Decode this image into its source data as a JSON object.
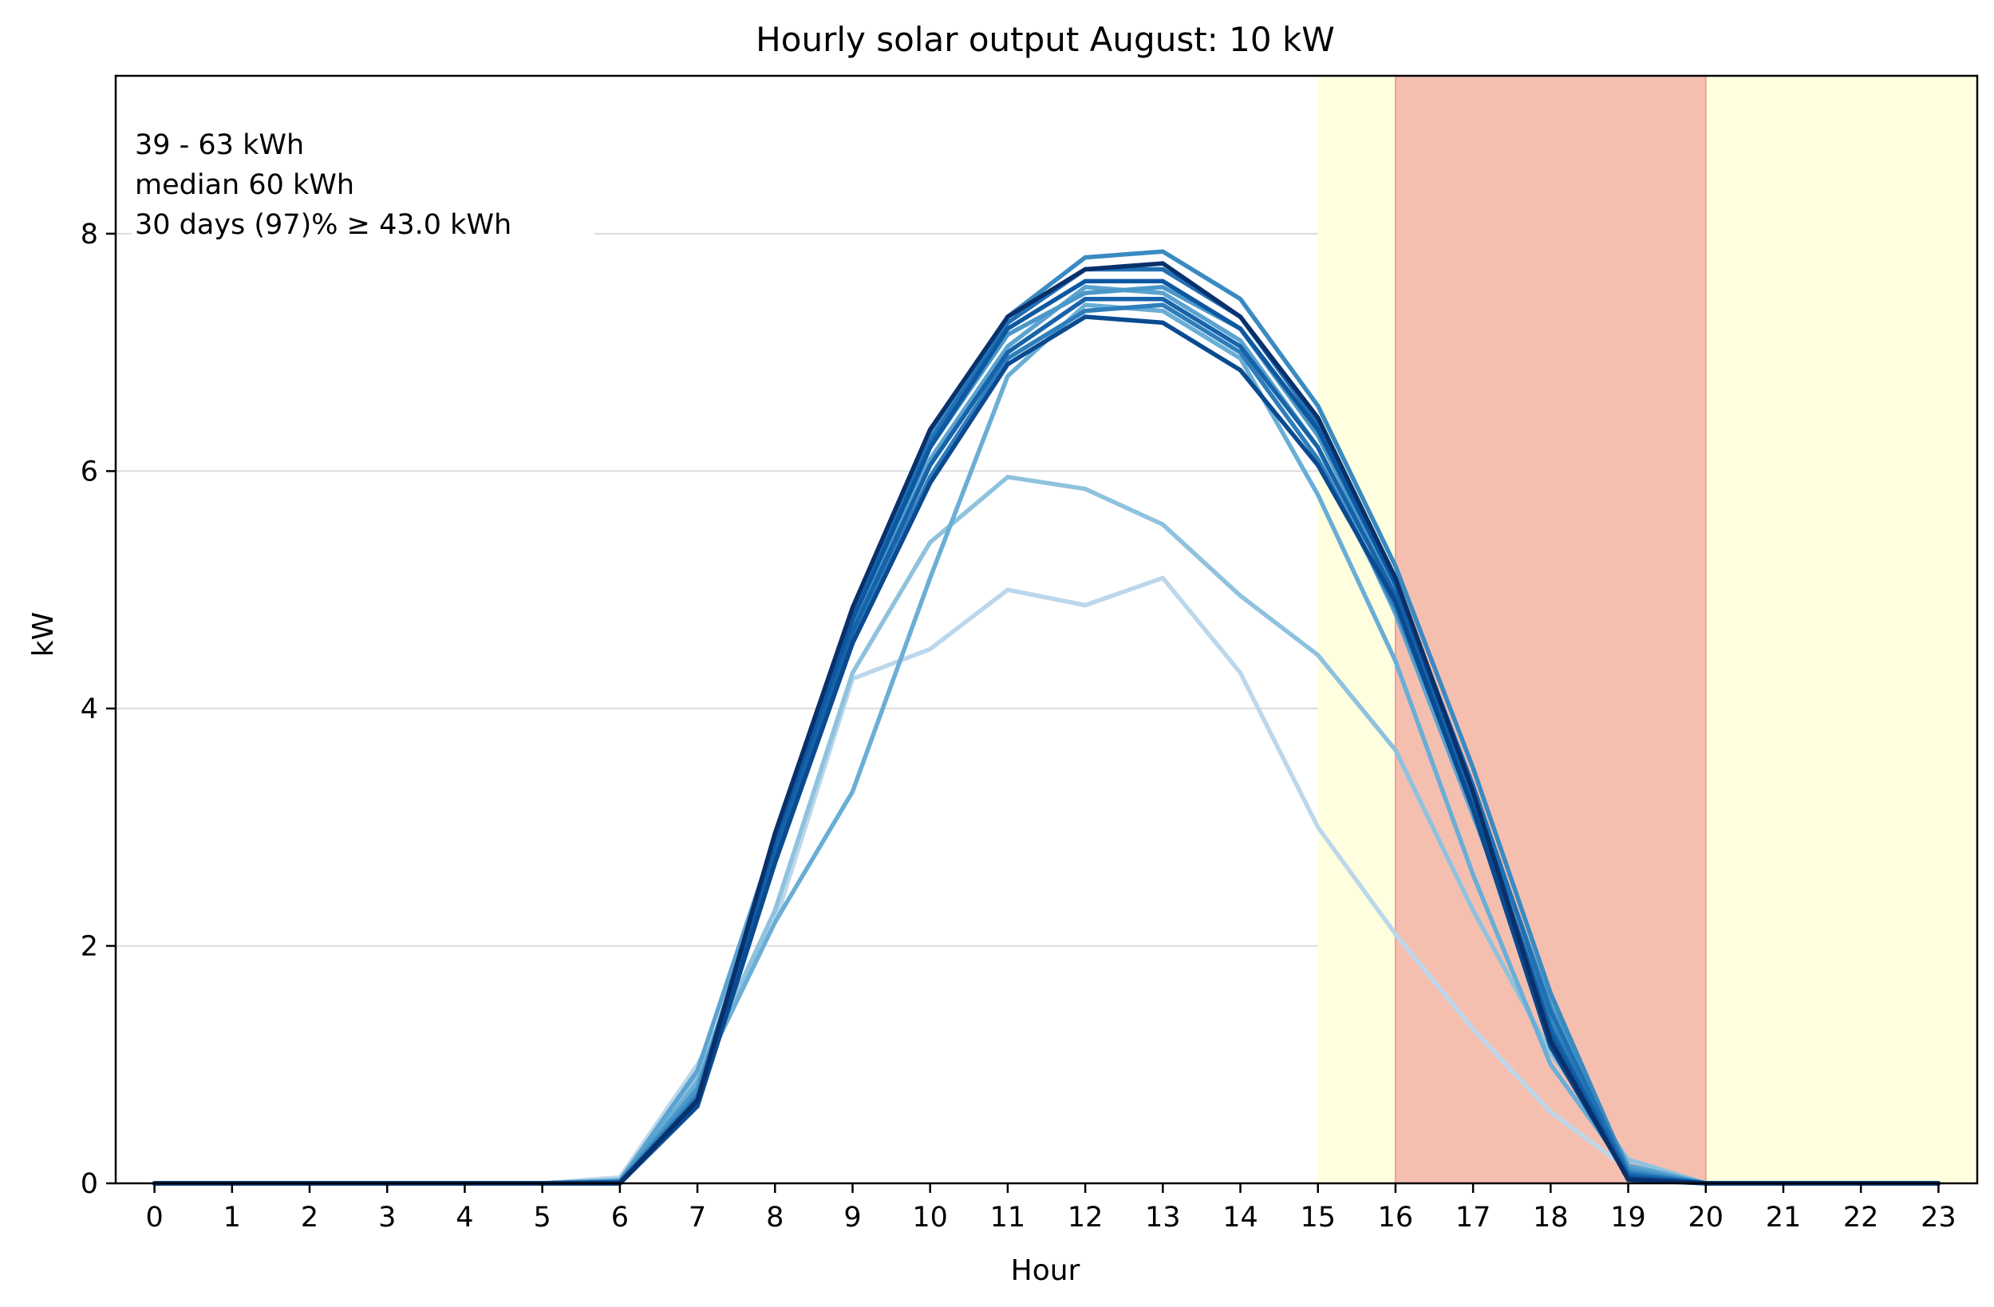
{
  "chart_data": {
    "type": "line",
    "title": "Hourly solar output August:  10 kW",
    "xlabel": "Hour",
    "ylabel": "kW",
    "xlim": [
      -0.5,
      23.5
    ],
    "ylim": [
      0,
      9.33
    ],
    "xticks": [
      0,
      1,
      2,
      3,
      4,
      5,
      6,
      7,
      8,
      9,
      10,
      11,
      12,
      13,
      14,
      15,
      16,
      17,
      18,
      19,
      20,
      21,
      22,
      23
    ],
    "yticks": [
      0,
      2,
      4,
      6,
      8
    ],
    "grid": "horizontal",
    "shaded_regions": [
      {
        "from": 15,
        "to": 23.5,
        "color": "#ffffe0"
      },
      {
        "from": 16,
        "to": 20,
        "color": "#f5bfb0"
      }
    ],
    "annotations": [
      "39 - 63 kWh",
      "median  60 kWh",
      "30 days (97)% ≥ 43.0 kWh"
    ],
    "x": [
      0,
      1,
      2,
      3,
      4,
      5,
      6,
      7,
      8,
      9,
      10,
      11,
      12,
      13,
      14,
      15,
      16,
      17,
      18,
      19,
      20,
      21,
      22,
      23
    ],
    "series": [
      {
        "color": "#bcd7eb",
        "values": [
          0,
          0,
          0,
          0,
          0,
          0,
          0.05,
          1.0,
          2.2,
          4.25,
          4.5,
          5.0,
          4.87,
          5.1,
          4.3,
          3.0,
          2.1,
          1.3,
          0.6,
          0.12,
          0,
          0,
          0,
          0
        ]
      },
      {
        "color": "#8fc2de",
        "values": [
          0,
          0,
          0,
          0,
          0,
          0,
          0.03,
          0.9,
          2.3,
          4.3,
          5.4,
          5.95,
          5.85,
          5.55,
          4.95,
          4.45,
          3.65,
          2.3,
          1.1,
          0.2,
          0,
          0,
          0,
          0
        ]
      },
      {
        "color": "#6aaed6",
        "values": [
          0,
          0,
          0,
          0,
          0,
          0,
          0.02,
          0.85,
          2.2,
          3.3,
          5.1,
          6.8,
          7.4,
          7.35,
          6.95,
          5.8,
          4.4,
          2.6,
          1.0,
          0.1,
          0,
          0,
          0,
          0
        ]
      },
      {
        "color": "#5ba3d0",
        "values": [
          0,
          0,
          0,
          0,
          0,
          0,
          0.02,
          0.95,
          2.9,
          4.75,
          6.1,
          7.05,
          7.55,
          7.5,
          7.1,
          6.2,
          4.8,
          3.1,
          1.4,
          0.15,
          0,
          0,
          0,
          0
        ]
      },
      {
        "color": "#4a98c9",
        "values": [
          0,
          0,
          0,
          0,
          0,
          0,
          0.02,
          0.8,
          2.8,
          4.7,
          6.2,
          7.15,
          7.5,
          7.55,
          7.2,
          6.3,
          5.0,
          3.3,
          1.5,
          0.12,
          0,
          0,
          0,
          0
        ]
      },
      {
        "color": "#3a8ac2",
        "values": [
          0,
          0,
          0,
          0,
          0,
          0,
          0.01,
          0.75,
          2.9,
          4.85,
          6.3,
          7.3,
          7.8,
          7.85,
          7.45,
          6.55,
          5.2,
          3.5,
          1.6,
          0.1,
          0,
          0,
          0,
          0
        ]
      },
      {
        "color": "#2f7ebc",
        "values": [
          0,
          0,
          0,
          0,
          0,
          0,
          0.01,
          0.7,
          2.75,
          4.6,
          5.95,
          6.95,
          7.35,
          7.4,
          7.0,
          6.1,
          4.85,
          3.2,
          1.35,
          0.08,
          0,
          0,
          0,
          0
        ]
      },
      {
        "color": "#2070b4",
        "values": [
          0,
          0,
          0,
          0,
          0,
          0,
          0.01,
          0.72,
          2.85,
          4.8,
          6.25,
          7.25,
          7.7,
          7.7,
          7.3,
          6.4,
          5.05,
          3.35,
          1.45,
          0.08,
          0,
          0,
          0,
          0
        ]
      },
      {
        "color": "#1763aa",
        "values": [
          0,
          0,
          0,
          0,
          0,
          0,
          0.01,
          0.68,
          2.8,
          4.65,
          6.05,
          7.0,
          7.45,
          7.45,
          7.05,
          6.2,
          4.95,
          3.25,
          1.3,
          0.06,
          0,
          0,
          0,
          0
        ]
      },
      {
        "color": "#0e58a2",
        "values": [
          0,
          0,
          0,
          0,
          0,
          0,
          0.0,
          0.66,
          2.9,
          4.75,
          6.2,
          7.2,
          7.6,
          7.6,
          7.2,
          6.35,
          5.05,
          3.3,
          1.25,
          0.05,
          0,
          0,
          0,
          0
        ]
      },
      {
        "color": "#0a4a90",
        "values": [
          0,
          0,
          0,
          0,
          0,
          0,
          0.0,
          0.65,
          2.7,
          4.55,
          5.9,
          6.9,
          7.3,
          7.25,
          6.85,
          6.05,
          4.9,
          3.15,
          1.15,
          0.04,
          0,
          0,
          0,
          0
        ]
      },
      {
        "color": "#08306b",
        "values": [
          0,
          0,
          0,
          0,
          0,
          0,
          0.0,
          0.7,
          2.95,
          4.85,
          6.35,
          7.3,
          7.7,
          7.75,
          7.3,
          6.45,
          5.1,
          3.3,
          1.2,
          0.03,
          0,
          0,
          0,
          0
        ]
      }
    ]
  }
}
